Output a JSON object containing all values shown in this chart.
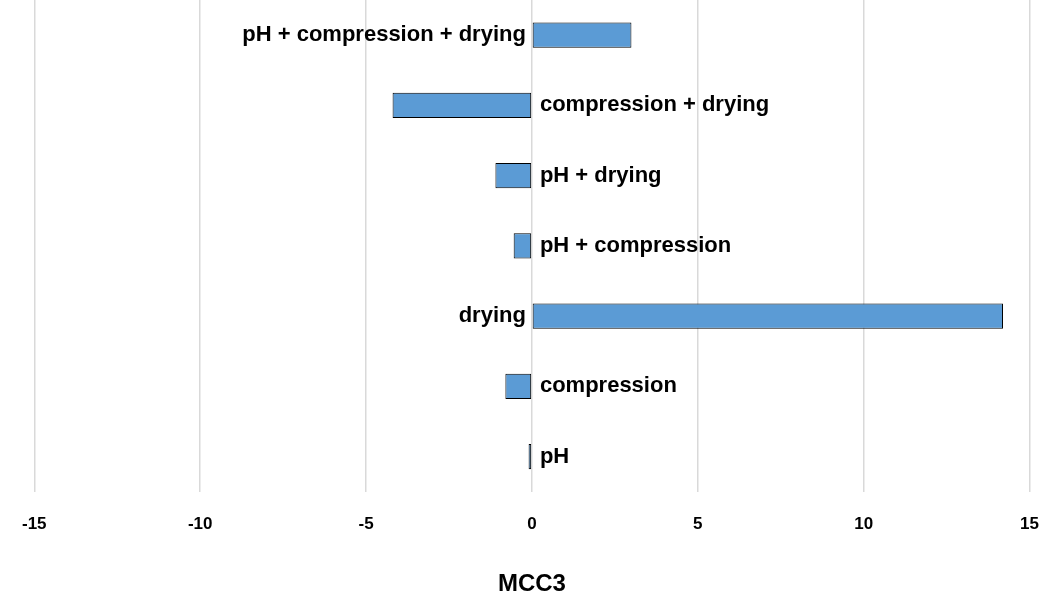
{
  "chart_data": {
    "type": "bar",
    "orientation": "horizontal",
    "xlabel": "MCC3",
    "categories": [
      "pH + compression + drying",
      "compression + drying",
      "pH + drying",
      "pH + compression",
      "drying",
      "compression",
      "pH"
    ],
    "values": [
      3.0,
      -4.2,
      -1.1,
      -0.55,
      14.2,
      -0.8,
      -0.1
    ],
    "color": "#5b9bd5",
    "xlim": [
      -15,
      15
    ],
    "xticks": [
      -15,
      -10,
      -5,
      0,
      5,
      10,
      15
    ],
    "grid": "x",
    "legend": false
  }
}
